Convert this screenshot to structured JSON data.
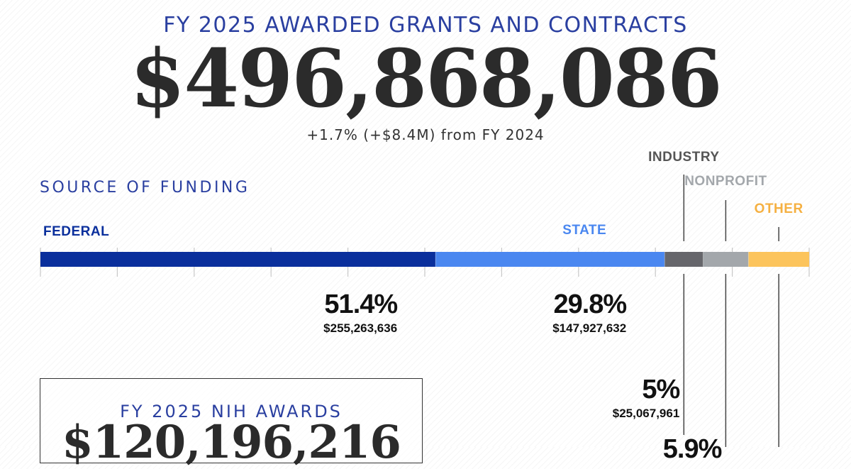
{
  "header": {
    "title": "FY 2025 AWARDED GRANTS AND CONTRACTS",
    "total": "$496,868,086",
    "change": "+1.7% (+$8.4M) from FY 2024"
  },
  "nih": {
    "title": "FY 2025 NIH AWARDS",
    "amount": "$120,196,216"
  },
  "chart_data": {
    "type": "bar",
    "title": "SOURCE OF FUNDING",
    "orientation": "horizontal-stacked",
    "categories": [
      "FEDERAL",
      "STATE",
      "INDUSTRY",
      "NONPROFIT",
      "OTHER"
    ],
    "values": [
      51.4,
      29.8,
      5,
      5.9,
      7.9
    ],
    "value_labels": [
      "51.4%",
      "29.8%",
      "5%",
      "5.9%",
      ""
    ],
    "amount_labels": [
      "$255,263,636",
      "$147,927,632",
      "$25,067,961",
      "",
      ""
    ],
    "colors": [
      "#0a2f9c",
      "#4a87f0",
      "#66666b",
      "#a3a7ab",
      "#fcc45c"
    ],
    "label_colors": [
      "#0a2f9c",
      "#4a87f0",
      "#555555",
      "#a3a7ab",
      "#f5b041"
    ],
    "xlim": [
      0,
      100
    ],
    "grid": true
  }
}
